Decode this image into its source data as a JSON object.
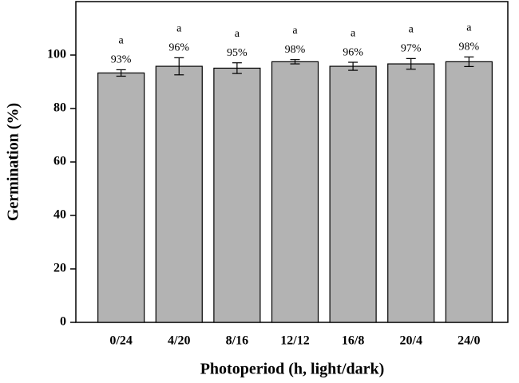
{
  "chart_data": {
    "type": "bar",
    "x_label": "Photoperiod (h, light/dark)",
    "y_label": "Germination (%)",
    "categories": [
      "0/24",
      "4/20",
      "8/16",
      "12/12",
      "16/8",
      "20/4",
      "24/0"
    ],
    "values": [
      93.3,
      95.8,
      95.1,
      97.5,
      95.8,
      96.7,
      97.5
    ],
    "value_labels": [
      "93%",
      "96%",
      "95%",
      "98%",
      "96%",
      "97%",
      "98%"
    ],
    "errors": [
      1.2,
      3.2,
      2.0,
      0.8,
      1.5,
      2.0,
      1.8
    ],
    "letters": [
      "a",
      "a",
      "a",
      "a",
      "a",
      "a",
      "a"
    ],
    "color": "#b3b3b3",
    "ylim": [
      0,
      120
    ],
    "yticks": [
      0,
      20,
      40,
      60,
      80,
      100
    ]
  }
}
